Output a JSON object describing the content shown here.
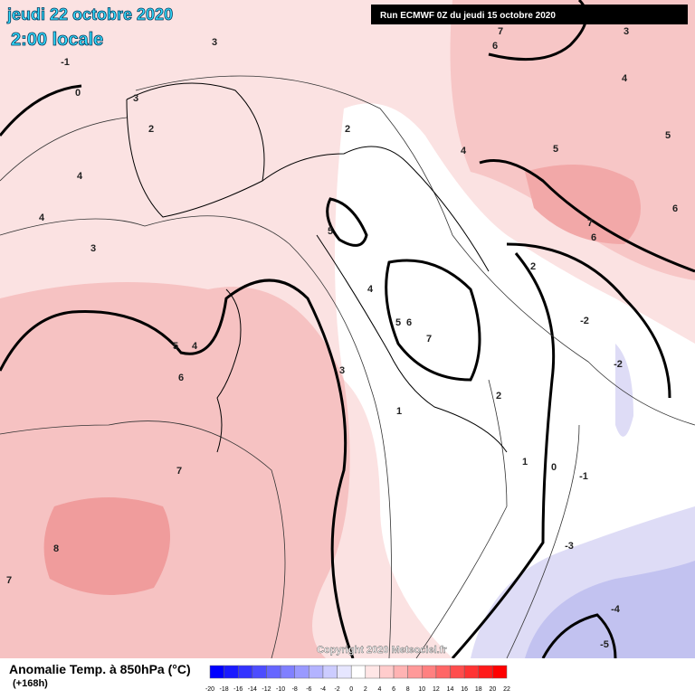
{
  "header": {
    "title": "jeudi 22 octobre 2020",
    "time": "2:00 locale",
    "run": "Run ECMWF 0Z du jeudi 15 octobre 2020"
  },
  "copyright": "Copyright 2020 Meteociel.fr",
  "footer": {
    "label": "Anomalie Temp. à 850hPa (°C)",
    "lead": "(+168h)"
  },
  "legend": {
    "ticks": [
      -20,
      -18,
      -16,
      -14,
      -12,
      -10,
      -8,
      -6,
      -4,
      -2,
      0,
      2,
      4,
      6,
      8,
      10,
      12,
      14,
      16,
      18,
      20,
      22
    ],
    "colors": [
      "#0000ff",
      "#1a1aff",
      "#3333ff",
      "#4d4dff",
      "#6666ff",
      "#8080ff",
      "#9999ff",
      "#b3b3ff",
      "#ccccff",
      "#e6e6ff",
      "#ffffff",
      "#ffe6e6",
      "#ffcccc",
      "#ffb3b3",
      "#ff9999",
      "#ff8080",
      "#ff6666",
      "#ff4d4d",
      "#ff3333",
      "#ff1a1a",
      "#ff0000"
    ]
  },
  "contour_labels": [
    -1,
    0,
    3,
    3,
    2,
    4,
    4,
    3,
    5,
    4,
    6,
    7,
    8,
    7,
    5,
    4,
    5,
    6,
    7,
    3,
    1,
    2,
    1,
    0,
    -1,
    -2,
    -2,
    -3,
    -4,
    -5,
    2,
    4,
    5,
    7,
    6,
    6,
    5,
    4,
    3,
    7,
    6,
    2
  ]
}
